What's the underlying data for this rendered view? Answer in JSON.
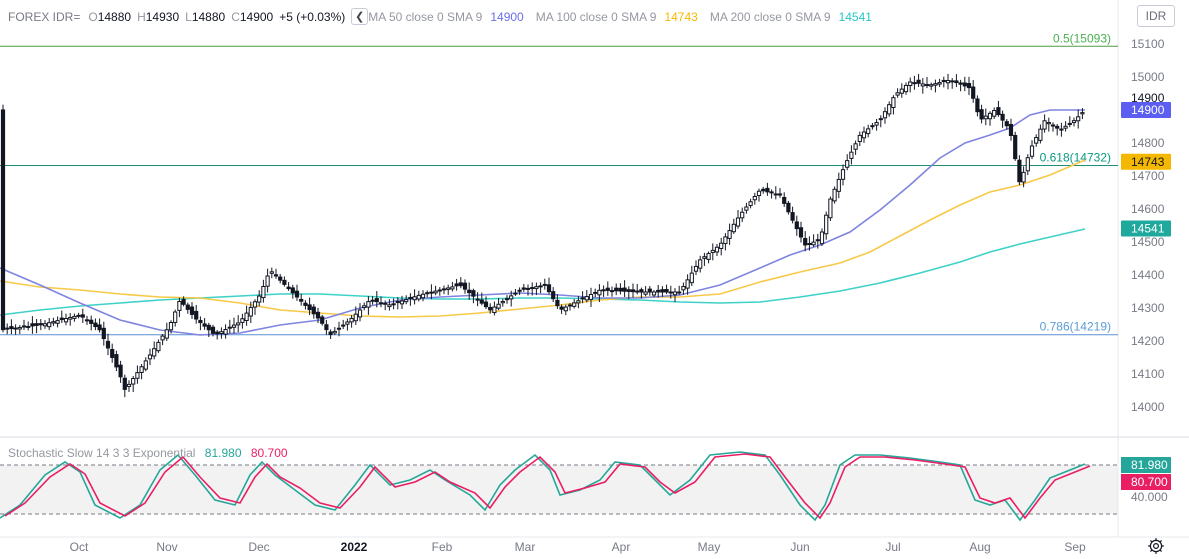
{
  "legend": {
    "symbol": "FOREX IDR=",
    "o_label": "O",
    "o_value": "14880",
    "h_label": "H",
    "h_value": "14930",
    "l_label": "L",
    "l_value": "14880",
    "c_label": "C",
    "c_value": "14900",
    "change": "+5 (+0.03%)",
    "ma50_label": "MA 50 close 0 SMA 9",
    "ma50_value": "14900",
    "ma50_color": "#6b6ee8",
    "ma100_label": "MA 100 close 0 SMA 9",
    "ma100_value": "14743",
    "ma100_color": "#f5c518",
    "ma200_label": "MA 200 close 0 SMA 9",
    "ma200_value": "14541",
    "ma200_color": "#26c6c6"
  },
  "currency_button": "IDR",
  "stoch_legend": {
    "label": "Stochastic Slow 14 3 3 Exponential",
    "k_value": "81.980",
    "k_color": "#26a69a",
    "d_value": "80.700",
    "d_color": "#e91e63"
  },
  "chart_data": [
    {
      "type": "candlestick",
      "y_axis_ticks": [
        "15100",
        "15000",
        "14900",
        "14800",
        "14700",
        "14600",
        "14500",
        "14400",
        "14300",
        "14200",
        "14100",
        "14000"
      ],
      "ylim": [
        13960,
        15170
      ],
      "x_axis_labels": [
        "Oct",
        "Nov",
        "Dec",
        "2022",
        "Feb",
        "Mar",
        "Apr",
        "May",
        "Jun",
        "Jul",
        "Aug",
        "Sep"
      ],
      "last_price": "14900",
      "price_labels": {
        "ma50": "14900",
        "ma100": "14743",
        "ma200": "14541"
      },
      "fib_levels": [
        {
          "label": "0.5(15093)",
          "value": 15093,
          "color": "#4caf50"
        },
        {
          "label": "0.618(14732)",
          "value": 14732,
          "color": "#089981"
        },
        {
          "label": "0.786(14219)",
          "value": 14219,
          "color": "#5b9bd5"
        }
      ],
      "series": [
        {
          "name": "MA 50 close 0 SMA 9",
          "color": "#7f84e0"
        },
        {
          "name": "MA 100 close 0 SMA 9",
          "color": "#f7c948"
        },
        {
          "name": "MA 200 close 0 SMA 9",
          "color": "#3dd1c8"
        }
      ]
    },
    {
      "type": "line",
      "y_axis_ticks": [
        "40.000"
      ],
      "levels": [
        80,
        20
      ],
      "ylim": [
        0,
        100
      ],
      "value_labels": {
        "k": "81.980",
        "d": "80.700"
      }
    }
  ]
}
